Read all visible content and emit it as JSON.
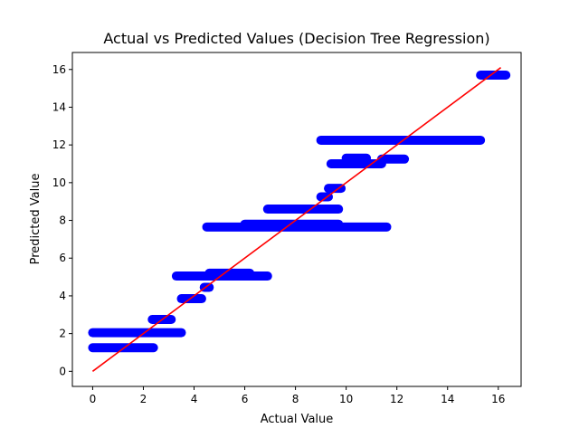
{
  "chart_data": {
    "type": "scatter",
    "title": "Actual vs Predicted Values (Decision Tree Regression)",
    "xlabel": "Actual Value",
    "ylabel": "Predicted Value",
    "xlim": [
      -0.8,
      16.9
    ],
    "ylim": [
      -0.8,
      16.9
    ],
    "xticks": [
      "0",
      "2",
      "4",
      "6",
      "8",
      "10",
      "12",
      "14",
      "16"
    ],
    "yticks": [
      "0",
      "2",
      "4",
      "6",
      "8",
      "10",
      "12",
      "14",
      "16"
    ],
    "grid": false,
    "legend": "none",
    "scatter_color": "#0000ff",
    "line_color": "#ff0000",
    "scatter_segments": [
      {
        "x_min": 0.0,
        "x_max": 3.5,
        "y": 2.05
      },
      {
        "x_min": 0.0,
        "x_max": 2.4,
        "y": 1.25
      },
      {
        "x_min": 2.35,
        "x_max": 3.1,
        "y": 2.75
      },
      {
        "x_min": 3.3,
        "x_max": 6.9,
        "y": 5.05
      },
      {
        "x_min": 3.5,
        "x_max": 4.3,
        "y": 3.85
      },
      {
        "x_min": 4.4,
        "x_max": 4.6,
        "y": 4.45
      },
      {
        "x_min": 4.6,
        "x_max": 6.2,
        "y": 5.2
      },
      {
        "x_min": 4.5,
        "x_max": 11.6,
        "y": 7.65
      },
      {
        "x_min": 6.0,
        "x_max": 9.7,
        "y": 7.8
      },
      {
        "x_min": 6.9,
        "x_max": 9.7,
        "y": 8.6
      },
      {
        "x_min": 9.0,
        "x_max": 9.3,
        "y": 9.25
      },
      {
        "x_min": 9.3,
        "x_max": 9.8,
        "y": 9.7
      },
      {
        "x_min": 9.4,
        "x_max": 11.4,
        "y": 11.0
      },
      {
        "x_min": 10.0,
        "x_max": 10.8,
        "y": 11.3
      },
      {
        "x_min": 11.4,
        "x_max": 12.3,
        "y": 11.25
      },
      {
        "x_min": 9.0,
        "x_max": 15.3,
        "y": 12.25
      },
      {
        "x_min": 15.3,
        "x_max": 16.3,
        "y": 15.7
      }
    ],
    "reference_line": {
      "x": [
        0,
        16.1
      ],
      "y": [
        0,
        16.1
      ]
    }
  }
}
